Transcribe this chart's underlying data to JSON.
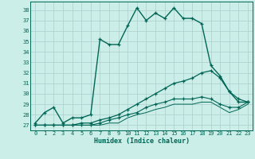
{
  "xlabel": "Humidex (Indice chaleur)",
  "background_color": "#cceee8",
  "grid_color": "#aacccc",
  "line_color": "#006655",
  "xlim": [
    -0.5,
    23.5
  ],
  "ylim": [
    26.5,
    38.8
  ],
  "xticks": [
    0,
    1,
    2,
    3,
    4,
    5,
    6,
    7,
    8,
    9,
    10,
    11,
    12,
    13,
    14,
    15,
    16,
    17,
    18,
    19,
    20,
    21,
    22,
    23
  ],
  "yticks": [
    27,
    28,
    29,
    30,
    31,
    32,
    33,
    34,
    35,
    36,
    37,
    38
  ],
  "series": [
    {
      "x": [
        0,
        1,
        2,
        3,
        4,
        5,
        6,
        7,
        8,
        9,
        10,
        11,
        12,
        13,
        14,
        15,
        16,
        17,
        18,
        19,
        20,
        21,
        22,
        23
      ],
      "y": [
        27.2,
        28.2,
        28.7,
        27.2,
        27.7,
        27.7,
        28.0,
        35.2,
        34.7,
        34.7,
        36.5,
        38.2,
        37.0,
        37.7,
        37.2,
        38.2,
        37.2,
        37.2,
        36.7,
        32.7,
        31.7,
        30.2,
        29.2,
        29.2
      ],
      "marker": "+",
      "markersize": 3.5,
      "linewidth": 1.0
    },
    {
      "x": [
        0,
        1,
        2,
        3,
        4,
        5,
        6,
        7,
        8,
        9,
        10,
        11,
        12,
        13,
        14,
        15,
        16,
        17,
        18,
        19,
        20,
        21,
        22,
        23
      ],
      "y": [
        27.0,
        27.0,
        27.0,
        27.0,
        27.0,
        27.2,
        27.2,
        27.5,
        27.7,
        28.0,
        28.5,
        29.0,
        29.5,
        30.0,
        30.5,
        31.0,
        31.2,
        31.5,
        32.0,
        32.2,
        31.5,
        30.2,
        29.5,
        29.2
      ],
      "marker": "+",
      "markersize": 3.0,
      "linewidth": 0.9
    },
    {
      "x": [
        0,
        1,
        2,
        3,
        4,
        5,
        6,
        7,
        8,
        9,
        10,
        11,
        12,
        13,
        14,
        15,
        16,
        17,
        18,
        19,
        20,
        21,
        22,
        23
      ],
      "y": [
        27.0,
        27.0,
        27.0,
        27.0,
        27.0,
        27.0,
        27.0,
        27.2,
        27.5,
        27.7,
        28.0,
        28.2,
        28.7,
        29.0,
        29.2,
        29.5,
        29.5,
        29.5,
        29.7,
        29.5,
        29.0,
        28.7,
        28.7,
        29.2
      ],
      "marker": "+",
      "markersize": 2.5,
      "linewidth": 0.8
    },
    {
      "x": [
        0,
        1,
        2,
        3,
        4,
        5,
        6,
        7,
        8,
        9,
        10,
        11,
        12,
        13,
        14,
        15,
        16,
        17,
        18,
        19,
        20,
        21,
        22,
        23
      ],
      "y": [
        27.0,
        27.0,
        27.0,
        27.0,
        27.0,
        27.0,
        27.0,
        27.0,
        27.2,
        27.2,
        27.7,
        28.0,
        28.2,
        28.5,
        28.7,
        29.0,
        29.0,
        29.0,
        29.2,
        29.2,
        28.7,
        28.2,
        28.5,
        29.0
      ],
      "marker": null,
      "markersize": 0,
      "linewidth": 0.7
    }
  ]
}
